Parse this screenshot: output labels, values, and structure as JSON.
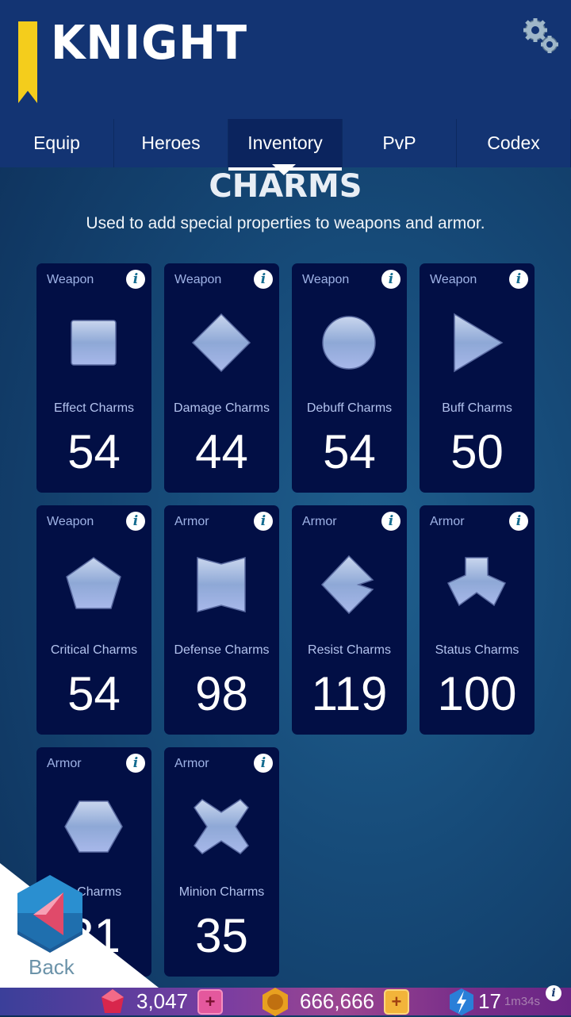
{
  "header": {
    "title": "KNIGHT",
    "settings_icon": "gear-icon",
    "accent": "#f4cd1c"
  },
  "tabs": [
    {
      "label": "Equip"
    },
    {
      "label": "Heroes"
    },
    {
      "label": "Inventory",
      "active": true
    },
    {
      "label": "PvP"
    },
    {
      "label": "Codex"
    }
  ],
  "section": {
    "title": "CHARMS",
    "subtitle": "Used to add special properties to weapons and armor."
  },
  "charms": [
    {
      "category": "Weapon",
      "name": "Effect Charms",
      "count": "54",
      "icon": "square"
    },
    {
      "category": "Weapon",
      "name": "Damage Charms",
      "count": "44",
      "icon": "diamond"
    },
    {
      "category": "Weapon",
      "name": "Debuff Charms",
      "count": "54",
      "icon": "circle"
    },
    {
      "category": "Weapon",
      "name": "Buff Charms",
      "count": "50",
      "icon": "triangle"
    },
    {
      "category": "Weapon",
      "name": "Critical Charms",
      "count": "54",
      "icon": "pentagon"
    },
    {
      "category": "Armor",
      "name": "Defense Charms",
      "count": "98",
      "icon": "bowtie"
    },
    {
      "category": "Armor",
      "name": "Resist Charms",
      "count": "119",
      "icon": "chevron"
    },
    {
      "category": "Armor",
      "name": "Status Charms",
      "count": "100",
      "icon": "tri-lobe"
    },
    {
      "category": "Armor",
      "name": "o Charms",
      "count": "31",
      "icon": "hexagon"
    },
    {
      "category": "Armor",
      "name": "Minion Charms",
      "count": "35",
      "icon": "cross"
    }
  ],
  "info_glyph": "i",
  "back": {
    "label": "Back"
  },
  "resources": {
    "gems": "3,047",
    "gold": "666,666",
    "energy": "17",
    "energy_timer": "1m34s"
  },
  "plus_glyph": "+"
}
